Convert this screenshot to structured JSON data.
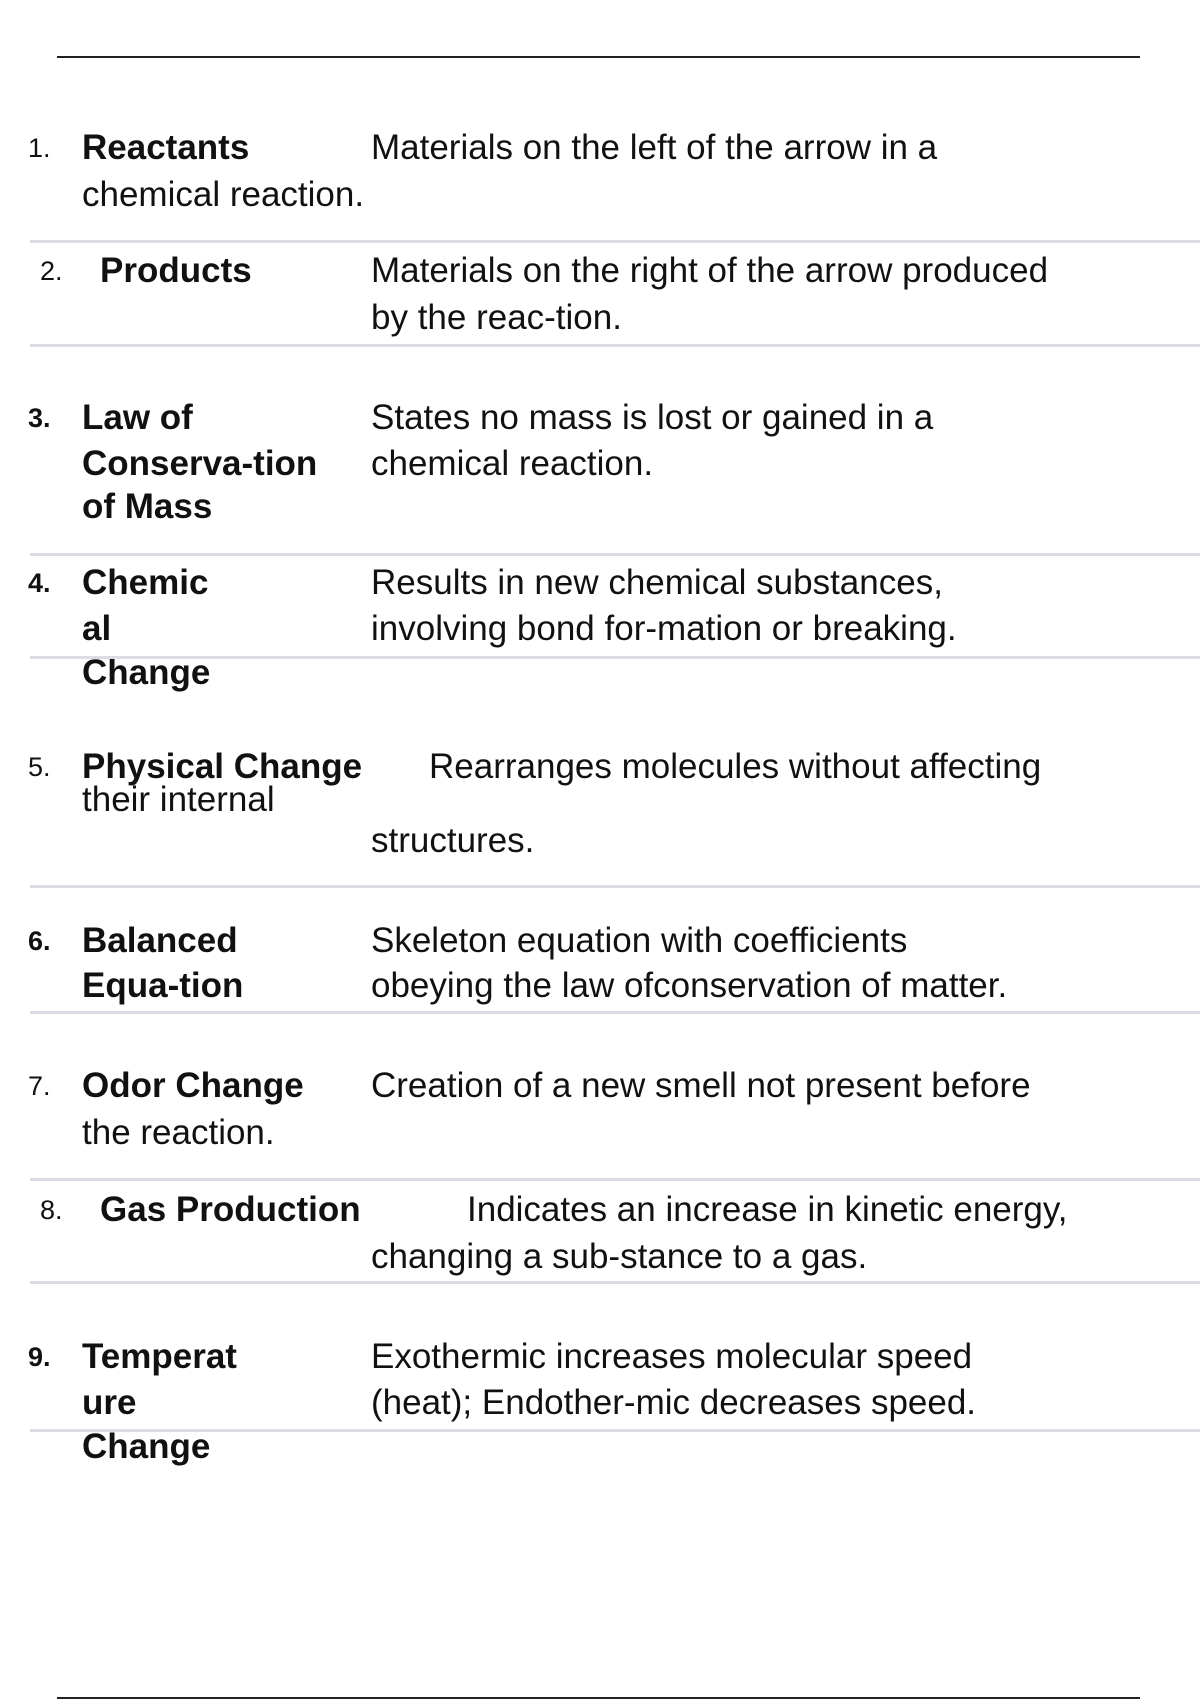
{
  "items": [
    {
      "number": "1.",
      "term_lines": [
        "Reactants"
      ],
      "definition_lines": [
        "Materials on the left of the arrow in a",
        "chemical reaction."
      ]
    },
    {
      "number": "2.",
      "term_lines": [
        "Products"
      ],
      "definition_lines": [
        "Materials on the right of the arrow produced",
        "by the reac-tion."
      ]
    },
    {
      "number": "3.",
      "term_lines": [
        "Law of",
        "Conserva-tion",
        "of Mass"
      ],
      "definition_lines": [
        "States no mass is lost or gained in a",
        "chemical reaction."
      ]
    },
    {
      "number": "4.",
      "term_lines": [
        "Chemic",
        "al",
        "Change"
      ],
      "definition_lines": [
        "Results in new chemical substances,",
        "involving bond for-mation or breaking."
      ]
    },
    {
      "number": "5.",
      "term_lines": [
        "Physical Change"
      ],
      "definition_lines": [
        "Rearranges molecules without affecting",
        "their internal",
        "structures."
      ]
    },
    {
      "number": "6.",
      "term_lines": [
        "Balanced",
        "Equa-tion"
      ],
      "definition_lines": [
        "Skeleton equation with coefficients",
        "obeying the law ofconservation of matter."
      ]
    },
    {
      "number": "7.",
      "term_lines": [
        "Odor Change"
      ],
      "definition_lines": [
        "Creation of a new smell not present before",
        "the reaction."
      ]
    },
    {
      "number": "8.",
      "term_lines": [
        "Gas Production"
      ],
      "definition_lines": [
        "Indicates an increase in kinetic energy,",
        "changing a sub-stance to a gas."
      ]
    },
    {
      "number": "9.",
      "term_lines": [
        "Temperat",
        "ure",
        "Change"
      ],
      "definition_lines": [
        "Exothermic increases molecular speed",
        "(heat); Endother-mic decreases speed."
      ]
    }
  ]
}
